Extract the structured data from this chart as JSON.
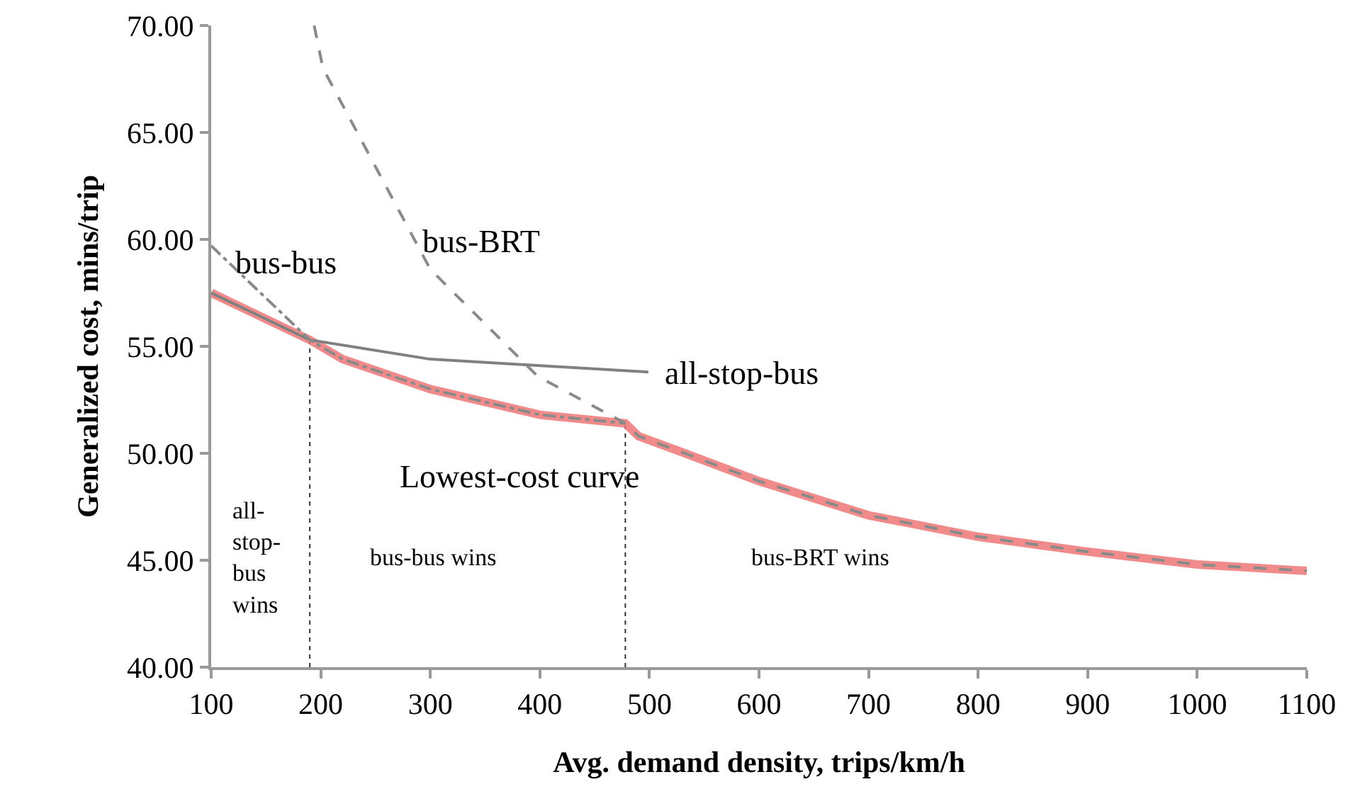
{
  "chart_data": {
    "type": "line",
    "xlabel": "Avg. demand density, trips/km/h",
    "ylabel": "Generalized cost, mins/trip",
    "xlim": [
      100,
      1100
    ],
    "xticks": [
      100,
      200,
      300,
      400,
      500,
      600,
      700,
      800,
      900,
      1000,
      1100
    ],
    "ylim": [
      40,
      70
    ],
    "yticks": [
      {
        "value": 40,
        "label": "40.00"
      },
      {
        "value": 45,
        "label": "45.00"
      },
      {
        "value": 50,
        "label": "50.00"
      },
      {
        "value": 55,
        "label": "55.00"
      },
      {
        "value": 60,
        "label": "60.00"
      },
      {
        "value": 65,
        "label": "65.00"
      },
      {
        "value": 70,
        "label": "70.00"
      }
    ],
    "grid": false,
    "legend": false,
    "marker": "none",
    "series": [
      {
        "name": "Lowest-cost curve",
        "color": "#ee7777",
        "line_style": "solid",
        "x": [
          100,
          190,
          220,
          300,
          400,
          478,
          490,
          527,
          600,
          700,
          800,
          900,
          1000,
          1100
        ],
        "values": [
          57.5,
          55.3,
          54.4,
          53.0,
          51.8,
          51.4,
          50.8,
          50.1,
          48.7,
          47.1,
          46.1,
          45.4,
          44.8,
          44.5
        ]
      },
      {
        "name": "all-stop-bus",
        "color": "#808080",
        "line_style": "solid",
        "x": [
          100,
          190,
          300,
          400,
          499
        ],
        "values": [
          57.5,
          55.3,
          54.4,
          54.1,
          53.8
        ]
      },
      {
        "name": "bus-bus",
        "color": "#8a8a8a",
        "line_style": "dashdot",
        "x": [
          100,
          190,
          220,
          300,
          400,
          478
        ],
        "values": [
          59.7,
          55.3,
          54.4,
          53.0,
          51.8,
          51.4
        ]
      },
      {
        "name": "bus-BRT",
        "color": "#8a8a8a",
        "line_style": "dashed",
        "x": [
          194,
          202,
          300,
          398,
          478,
          490,
          527,
          600,
          700,
          800,
          900,
          1000,
          1100
        ],
        "values": [
          70.0,
          68.0,
          58.6,
          53.6,
          51.4,
          50.8,
          50.1,
          48.7,
          47.1,
          46.1,
          45.4,
          44.8,
          44.5
        ]
      }
    ],
    "ref_lines": [
      {
        "axis": "x",
        "value": 190,
        "color": "#333333",
        "line_style": "dotted"
      },
      {
        "axis": "x",
        "value": 478,
        "color": "#333333",
        "line_style": "dotted"
      }
    ],
    "annotations": [
      "all-stop-bus wins",
      "bus-bus wins",
      "bus-BRT wins"
    ]
  }
}
